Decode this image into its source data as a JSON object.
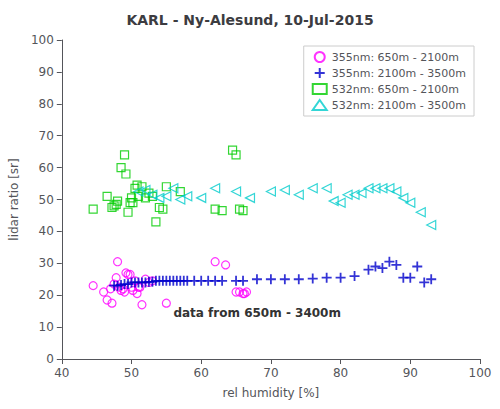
{
  "chart_data": {
    "type": "scatter",
    "title": "KARL - Ny-Alesund, 10-Jul-2015",
    "xlabel": "rel humidity [%]",
    "ylabel": "lidar ratio [sr]",
    "xlim": [
      40,
      100
    ],
    "ylim": [
      0,
      100
    ],
    "xticks": [
      40,
      50,
      60,
      70,
      80,
      90,
      100
    ],
    "yticks": [
      0,
      10,
      20,
      30,
      40,
      50,
      60,
      70,
      80,
      90,
      100
    ],
    "grid": false,
    "legend": "upper right",
    "annotations": [
      "data from 650m - 3400m"
    ],
    "series": [
      {
        "name": "355nm: 650m - 2100m",
        "color": "#FF00FF",
        "marker": "circle",
        "x": [
          44.5,
          46.0,
          46.5,
          47.0,
          47.2,
          47.5,
          47.8,
          48.0,
          48.2,
          48.5,
          48.8,
          49.0,
          49.2,
          49.5,
          49.8,
          50.0,
          50.2,
          50.5,
          50.8,
          51.0,
          51.2,
          51.5,
          52.0,
          52.5,
          53.0,
          55.0,
          62.0,
          63.5,
          65.0,
          65.5,
          66.0,
          66.2,
          66.5
        ],
        "values": [
          23.0,
          21.0,
          18.5,
          22.0,
          17.5,
          23.5,
          25.5,
          30.5,
          22.5,
          21.5,
          22.0,
          21.0,
          27.0,
          26.5,
          26.5,
          22.5,
          21.5,
          24.5,
          20.5,
          22.5,
          22.5,
          17.0,
          25.0,
          24.0,
          24.5,
          17.5,
          30.5,
          29.5,
          21.0,
          21.0,
          20.5,
          20.5,
          21.0
        ]
      },
      {
        "name": "355nm: 2100m - 3500m",
        "color": "#0000CC",
        "marker": "plus",
        "x": [
          47.5,
          48.0,
          48.5,
          49.0,
          49.5,
          50.0,
          50.5,
          51.0,
          51.5,
          52.0,
          52.5,
          53.0,
          53.5,
          54.0,
          54.5,
          55.0,
          55.5,
          56.0,
          56.5,
          57.0,
          57.5,
          58.0,
          59.0,
          60.0,
          61.0,
          62.0,
          63.0,
          65.0,
          66.0,
          68.0,
          70.0,
          72.0,
          74.0,
          76.0,
          78.0,
          80.0,
          82.0,
          84.0,
          85.0,
          86.0,
          87.0,
          88.0,
          89.0,
          90.0,
          91.0,
          92.0,
          93.0
        ],
        "values": [
          23.0,
          23.0,
          23.2,
          23.5,
          23.5,
          24.0,
          24.0,
          24.0,
          24.0,
          24.0,
          24.2,
          24.2,
          24.5,
          24.5,
          24.5,
          24.5,
          24.5,
          24.5,
          24.5,
          24.5,
          24.5,
          24.5,
          24.5,
          24.5,
          24.5,
          24.5,
          24.5,
          24.5,
          24.5,
          25.0,
          25.0,
          25.0,
          25.0,
          25.2,
          25.5,
          25.5,
          26.0,
          28.0,
          29.0,
          28.5,
          30.5,
          29.5,
          25.5,
          25.5,
          29.0,
          24.0,
          25.0
        ]
      },
      {
        "name": "532nm: 650m - 2100m",
        "color": "#00CC00",
        "marker": "square",
        "x": [
          44.5,
          46.5,
          47.2,
          47.5,
          47.8,
          48.0,
          48.5,
          49.0,
          49.2,
          49.5,
          49.8,
          50.0,
          50.2,
          50.5,
          50.8,
          51.0,
          51.5,
          52.0,
          52.5,
          53.0,
          53.5,
          54.0,
          54.5,
          55.0,
          57.0,
          62.0,
          63.0,
          64.5,
          65.0,
          65.5,
          66.0
        ],
        "values": [
          47.0,
          51.0,
          47.5,
          48.0,
          48.5,
          49.5,
          60.0,
          64.0,
          58.0,
          46.0,
          49.0,
          50.5,
          49.0,
          53.5,
          54.5,
          51.0,
          54.0,
          50.5,
          52.0,
          51.0,
          43.0,
          47.5,
          47.0,
          54.0,
          52.5,
          47.0,
          46.5,
          65.5,
          64.0,
          47.0,
          46.5
        ]
      },
      {
        "name": "532nm: 2100m - 3500m",
        "color": "#00CCCC",
        "marker": "triangle-left",
        "x": [
          51.0,
          52.0,
          53.0,
          54.0,
          55.0,
          56.0,
          57.0,
          58.0,
          60.0,
          62.0,
          65.0,
          67.0,
          70.0,
          72.0,
          74.0,
          76.0,
          78.0,
          79.0,
          80.0,
          81.0,
          82.0,
          83.0,
          84.0,
          85.0,
          86.0,
          87.0,
          88.0,
          89.0,
          90.0,
          91.5,
          93.0
        ],
        "values": [
          52.5,
          53.0,
          51.5,
          50.5,
          51.0,
          53.5,
          50.0,
          51.0,
          50.5,
          53.5,
          52.5,
          50.5,
          52.5,
          53.0,
          51.5,
          53.5,
          53.5,
          49.5,
          49.0,
          51.5,
          51.5,
          52.0,
          53.5,
          53.5,
          53.5,
          53.5,
          52.5,
          50.5,
          49.0,
          46.0,
          42.0
        ]
      }
    ]
  }
}
